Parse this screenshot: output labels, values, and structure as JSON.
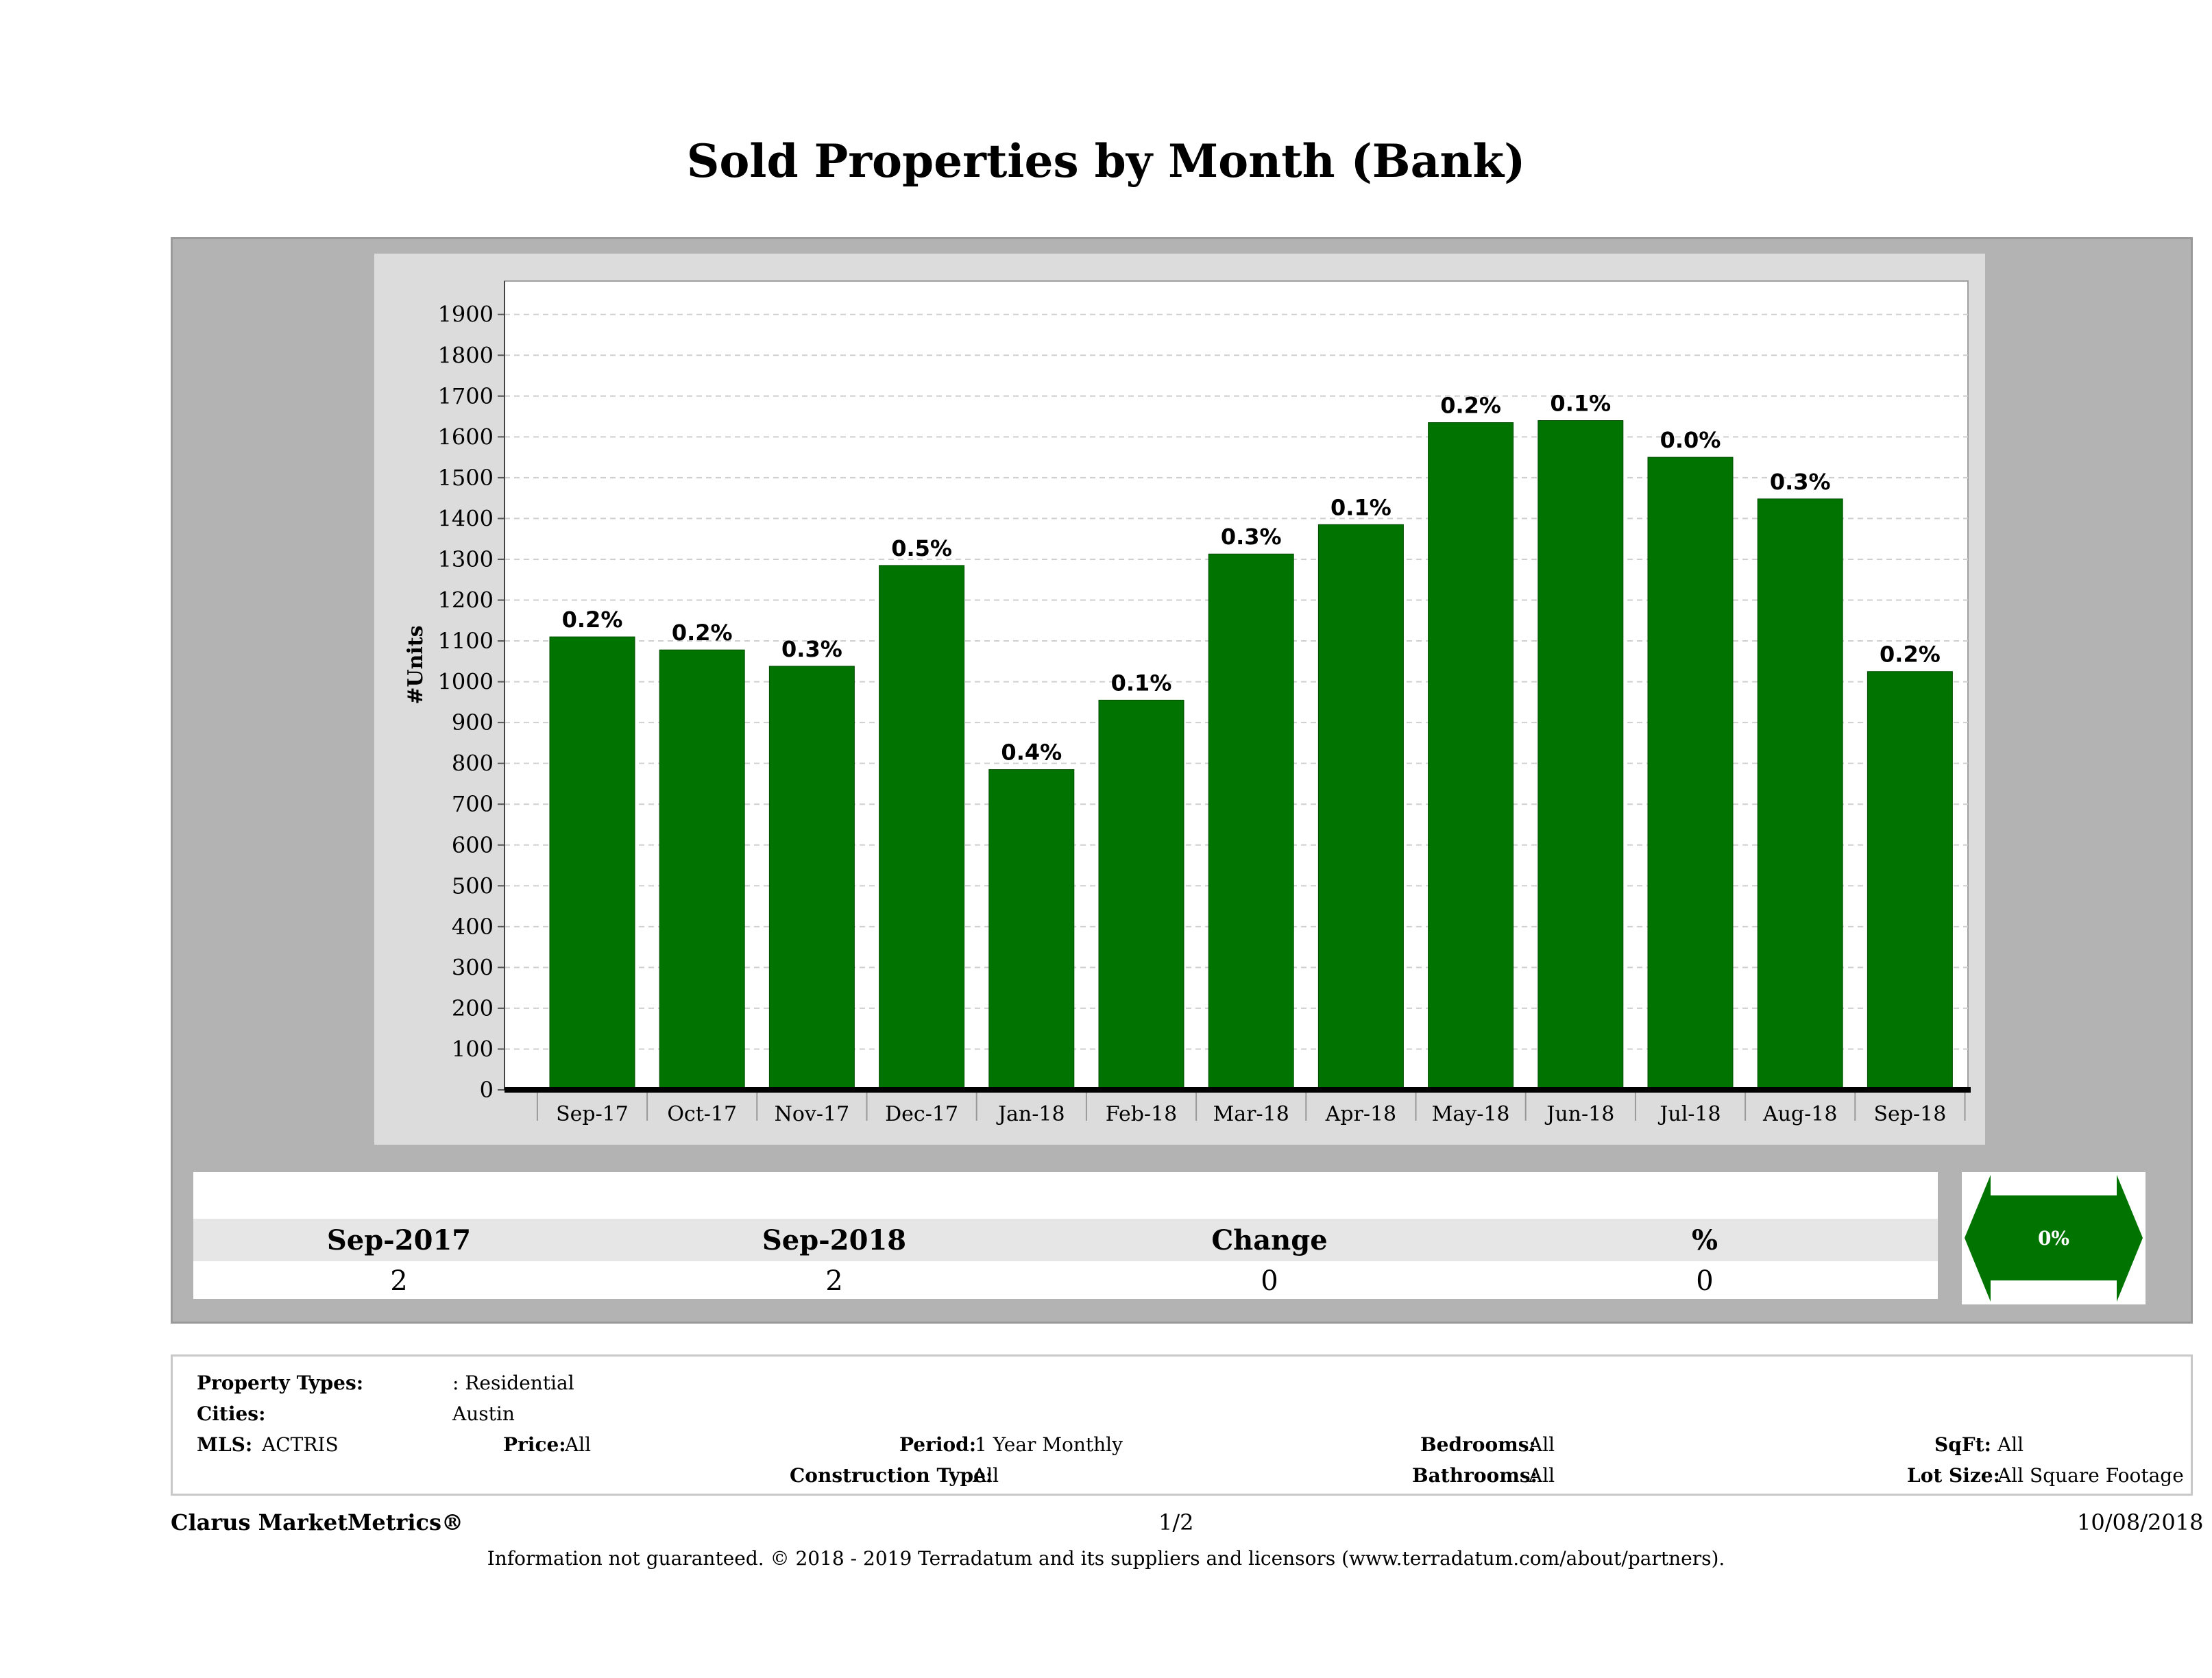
{
  "title": "Sold Properties by Month (Bank)",
  "chart_data": {
    "type": "bar",
    "ylabel": "#Units",
    "ylim": [
      0,
      1950
    ],
    "yticks": [
      0,
      100,
      200,
      300,
      400,
      500,
      600,
      700,
      800,
      900,
      1000,
      1100,
      1200,
      1300,
      1400,
      1500,
      1600,
      1700,
      1800,
      1900
    ],
    "categories": [
      "Sep-17",
      "Oct-17",
      "Nov-17",
      "Dec-17",
      "Jan-18",
      "Feb-18",
      "Mar-18",
      "Apr-18",
      "May-18",
      "Jun-18",
      "Jul-18",
      "Aug-18",
      "Sep-18"
    ],
    "values": [
      1110,
      1078,
      1038,
      1285,
      785,
      955,
      1313,
      1385,
      1635,
      1640,
      1550,
      1448,
      1025
    ],
    "data_labels": [
      "0.2%",
      "0.2%",
      "0.3%",
      "0.5%",
      "0.4%",
      "0.1%",
      "0.3%",
      "0.1%",
      "0.2%",
      "0.1%",
      "0.0%",
      "0.3%",
      "0.2%"
    ],
    "bar_color": "#007300",
    "grid": true
  },
  "stats": {
    "headers": [
      "Sep-2017",
      "Sep-2018",
      "Change",
      "%"
    ],
    "values": [
      "2",
      "2",
      "0",
      "0"
    ],
    "arrow_label": "0%"
  },
  "criteria": {
    "property_types_label": "Property Types:",
    "property_types_value": ": Residential",
    "cities_label": "Cities:",
    "cities_value": "Austin",
    "mls_label": "MLS:",
    "mls_value": "ACTRIS",
    "price_label": "Price:",
    "price_value": "All",
    "period_label": "Period:",
    "period_value": "1 Year Monthly",
    "construction_label": "Construction Type:",
    "construction_value": "All",
    "bedrooms_label": "Bedrooms:",
    "bedrooms_value": "All",
    "bathrooms_label": "Bathrooms:",
    "bathrooms_value": "All",
    "sqft_label": "SqFt:",
    "sqft_value": "All",
    "lot_label": "Lot Size:",
    "lot_value": "All Square Footage"
  },
  "footer": {
    "brand": "Clarus MarketMetrics®",
    "page": "1/2",
    "date": "10/08/2018",
    "disclaimer": "Information not guaranteed. © 2018 - 2019 Terradatum and its suppliers and licensors (www.terradatum.com/about/partners)."
  }
}
